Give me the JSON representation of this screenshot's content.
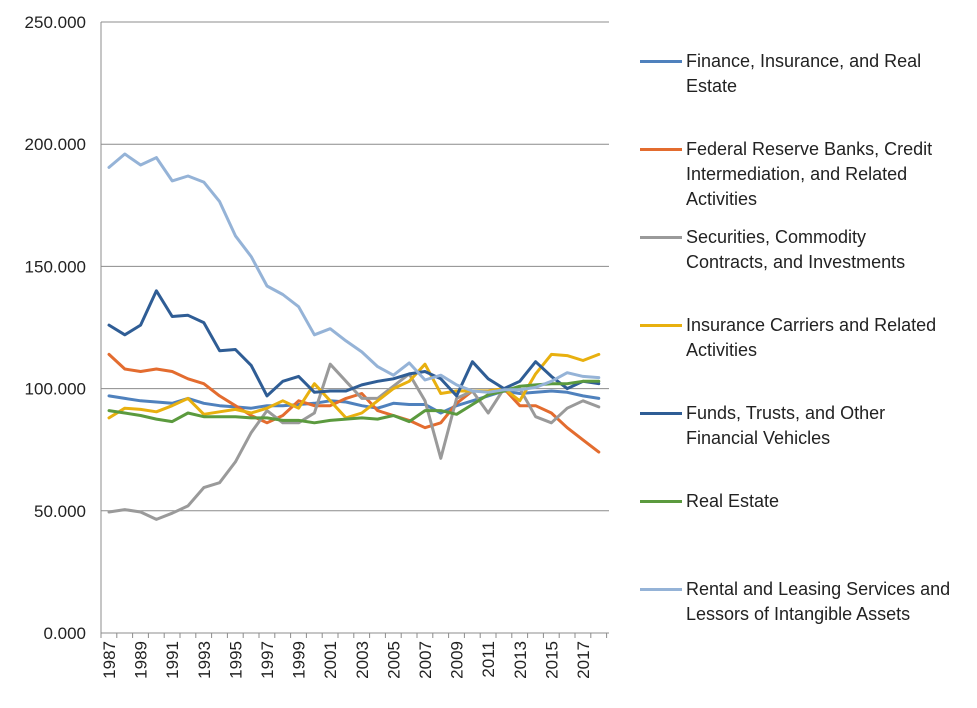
{
  "chart_data": {
    "type": "line",
    "title": "",
    "xlabel": "",
    "ylabel": "",
    "ylim": [
      0,
      250
    ],
    "yticks": [
      "0.000",
      "50.000",
      "100.000",
      "150.000",
      "200.000",
      "250.000"
    ],
    "x": [
      1987,
      1988,
      1989,
      1990,
      1991,
      1992,
      1993,
      1994,
      1995,
      1996,
      1997,
      1998,
      1999,
      2000,
      2001,
      2002,
      2003,
      2004,
      2005,
      2006,
      2007,
      2008,
      2009,
      2010,
      2011,
      2012,
      2013,
      2014,
      2015,
      2016,
      2017,
      2018
    ],
    "xtick_labels": [
      "1987",
      "1989",
      "1991",
      "1993",
      "1995",
      "1997",
      "1999",
      "2001",
      "2003",
      "2005",
      "2007",
      "2009",
      "2011",
      "2013",
      "2015",
      "2017"
    ],
    "grid": true,
    "legend_position": "right",
    "series": [
      {
        "name": "Finance, Insurance, and Real Estate",
        "color": "#4f81bd",
        "values": [
          97,
          96,
          95,
          94.5,
          94,
          96,
          94,
          93,
          92.5,
          92,
          93,
          93,
          93.5,
          94,
          95,
          94.5,
          93,
          92,
          94,
          93.5,
          93.5,
          90,
          93,
          95,
          97,
          99,
          98,
          98.5,
          99,
          98.5,
          97,
          96
        ]
      },
      {
        "name": "Federal Reserve Banks, Credit Intermediation, and Related Activities",
        "color": "#e36c2f",
        "values": [
          114,
          108,
          107,
          108,
          107,
          104,
          102,
          97,
          93,
          89,
          86,
          89,
          95,
          93,
          93,
          96,
          98,
          91,
          89,
          87,
          84,
          86,
          94,
          99,
          99,
          100,
          93,
          93,
          90,
          84,
          79,
          74
        ]
      },
      {
        "name": "Securities, Commodity Contracts, and Investments",
        "color": "#9a9a9a",
        "values": [
          49.5,
          50.5,
          49.5,
          46.5,
          49,
          52,
          59.5,
          61.5,
          70,
          82,
          91,
          86,
          86,
          90,
          110,
          103,
          96,
          96,
          101,
          106,
          95,
          71.5,
          96,
          99,
          90,
          100,
          100,
          88.5,
          86,
          92,
          95,
          92.5
        ]
      },
      {
        "name": "Insurance Carriers and Related Activities",
        "color": "#e8b00f",
        "values": [
          88,
          92,
          91.5,
          90.5,
          93,
          96,
          89.5,
          90.5,
          91.5,
          90,
          92,
          95,
          92,
          102,
          95,
          88,
          90,
          95,
          100,
          103,
          110,
          98,
          99,
          99,
          99,
          100,
          95,
          106,
          114,
          113.5,
          111.5,
          114
        ]
      },
      {
        "name": "Funds, Trusts, and Other Financial Vehicles",
        "color": "#2f5d95",
        "values": [
          126,
          122,
          126,
          140,
          129.5,
          130,
          127,
          115.5,
          116,
          109.5,
          97,
          103,
          105,
          98.5,
          99,
          99,
          101.5,
          103,
          104,
          106,
          107,
          104,
          97,
          111,
          104,
          100,
          103,
          111,
          105,
          100,
          103,
          102
        ]
      },
      {
        "name": "Real Estate",
        "color": "#5b9a3e",
        "values": [
          91,
          90,
          89,
          87.5,
          86.5,
          90,
          88.5,
          88.5,
          88.5,
          88,
          88,
          87,
          87,
          86,
          87,
          87.5,
          88,
          87.5,
          89,
          86.5,
          91,
          91,
          89.5,
          93.5,
          97.5,
          99,
          101,
          101.5,
          102,
          102,
          103,
          103
        ]
      },
      {
        "name": "Rental and Leasing Services and Lessors of Intangible Assets",
        "color": "#95b3d7",
        "values": [
          190.5,
          196,
          191.5,
          194.5,
          185,
          187,
          184.5,
          176.5,
          162.5,
          154,
          142,
          138.5,
          133.5,
          122,
          124.5,
          119.5,
          115,
          109,
          105.5,
          110.5,
          103.5,
          105.5,
          101.5,
          99,
          98.5,
          99.5,
          99.5,
          100.5,
          103,
          106.5,
          105,
          104.5
        ]
      }
    ]
  },
  "legend": {
    "items": [
      {
        "label": "Finance, Insurance, and Real\nEstate"
      },
      {
        "label": "Federal Reserve Banks, Credit\nIntermediation, and Related\nActivities"
      },
      {
        "label": "Securities, Commodity\nContracts, and Investments"
      },
      {
        "label": "Insurance Carriers and Related\nActivities"
      },
      {
        "label": "Funds, Trusts, and Other\nFinancial Vehicles"
      },
      {
        "label": "Real Estate"
      },
      {
        "label": "Rental and Leasing Services and\nLessors of Intangible Assets"
      }
    ]
  }
}
